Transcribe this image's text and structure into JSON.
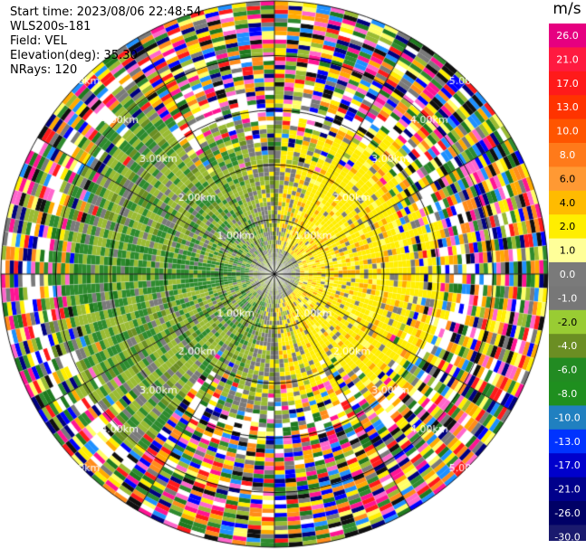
{
  "info": {
    "start_time": "Start time: 2023/08/06 22:48:54",
    "instrument": "WLS200s-181",
    "field": "Field: VEL",
    "elevation": "Elevation(deg): 35.30",
    "nrays": "NRays: 120"
  },
  "plot": {
    "range_rings": [
      1.0,
      2.0,
      3.0,
      4.0,
      5.0
    ],
    "ring_unit": "km",
    "ring_labels": [
      "1.00km",
      "2.00km",
      "3.00km",
      "4.00km",
      "5.00km"
    ],
    "radial_lines_deg": [
      0,
      30,
      60,
      90,
      120,
      150,
      180,
      210,
      240,
      270,
      300,
      330
    ],
    "max_range_km": 5.0
  },
  "colorbar": {
    "unit": "m/s",
    "tick_labels": [
      "26.0",
      "21.0",
      "17.0",
      "13.0",
      "10.0",
      "8.0",
      "6.0",
      "4.0",
      "2.0",
      "1.0",
      "0.0",
      "-1.0",
      "-2.0",
      "-4.0",
      "-6.0",
      "-8.0",
      "-10.0",
      "-13.0",
      "-17.0",
      "-21.0",
      "-26.0",
      "-30.0"
    ],
    "colors": [
      "#e60080",
      "#ff1a40",
      "#ff1a1a",
      "#ff3300",
      "#ff5500",
      "#ff7a1a",
      "#ff9933",
      "#ffbb00",
      "#ffee00",
      "#ffff99",
      "#7a7a7a",
      "#777777",
      "#99cc33",
      "#6b8e23",
      "#228b22",
      "#1f8f1f",
      "#2080c0",
      "#0033ff",
      "#0000cc",
      "#00008b",
      "#000066",
      "#1a1a6e"
    ]
  }
}
